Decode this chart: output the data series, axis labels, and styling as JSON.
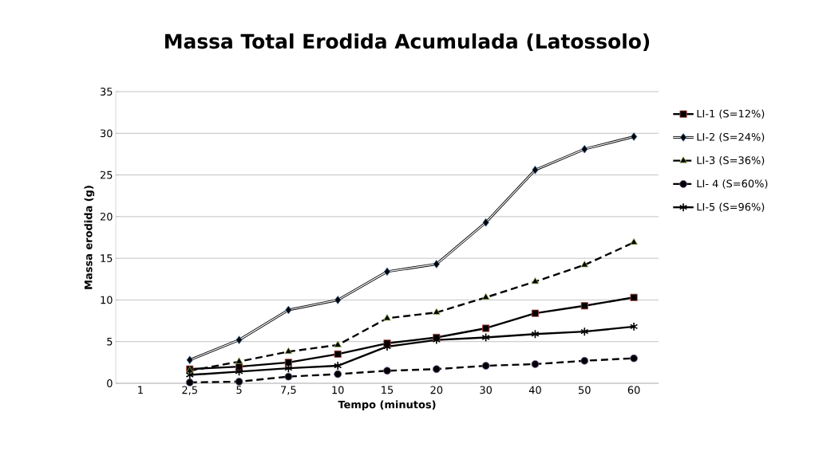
{
  "chart_data": {
    "type": "line",
    "title": "Massa Total Erodida Acumulada (Latossolo)",
    "xlabel": "Tempo (minutos)",
    "ylabel": "Massa erodida (g)",
    "categories": [
      "1",
      "2,5",
      "5",
      "7,5",
      "10",
      "15",
      "20",
      "30",
      "40",
      "50",
      "60"
    ],
    "series": [
      {
        "name": "LI-1 (S=12%)",
        "color": "#000000",
        "marker": "square",
        "line_style": "solid",
        "values": [
          null,
          1.7,
          2.0,
          2.5,
          3.5,
          4.8,
          5.5,
          6.6,
          8.4,
          9.3,
          10.3
        ]
      },
      {
        "name": "LI-2 (S=24%)",
        "color": "#000000",
        "marker": "diamond",
        "line_style": "solid",
        "values": [
          null,
          2.8,
          5.2,
          8.8,
          10.0,
          13.4,
          14.3,
          19.3,
          25.6,
          28.1,
          29.6
        ]
      },
      {
        "name": "LI-3 (S=36%)",
        "color": "#000000",
        "marker": "triangle",
        "line_style": "dashed",
        "values": [
          null,
          1.5,
          2.6,
          3.8,
          4.6,
          7.8,
          8.5,
          10.3,
          12.2,
          14.2,
          16.9
        ]
      },
      {
        "name": "LI- 4 (S=60%)",
        "color": "#000000",
        "marker": "circle",
        "line_style": "dashed",
        "values": [
          null,
          0.1,
          0.2,
          0.8,
          1.1,
          1.5,
          1.7,
          2.1,
          2.3,
          2.7,
          3.0
        ]
      },
      {
        "name": "LI-5 (S=96%)",
        "color": "#000000",
        "marker": "cross",
        "line_style": "solid",
        "values": [
          null,
          1.0,
          1.4,
          1.8,
          2.1,
          4.4,
          5.2,
          5.5,
          5.9,
          6.2,
          6.8
        ]
      }
    ],
    "ylim": [
      0,
      35
    ],
    "yticks": [
      0,
      5,
      10,
      15,
      20,
      25,
      30,
      35
    ],
    "grid": "y",
    "legend": "right"
  }
}
